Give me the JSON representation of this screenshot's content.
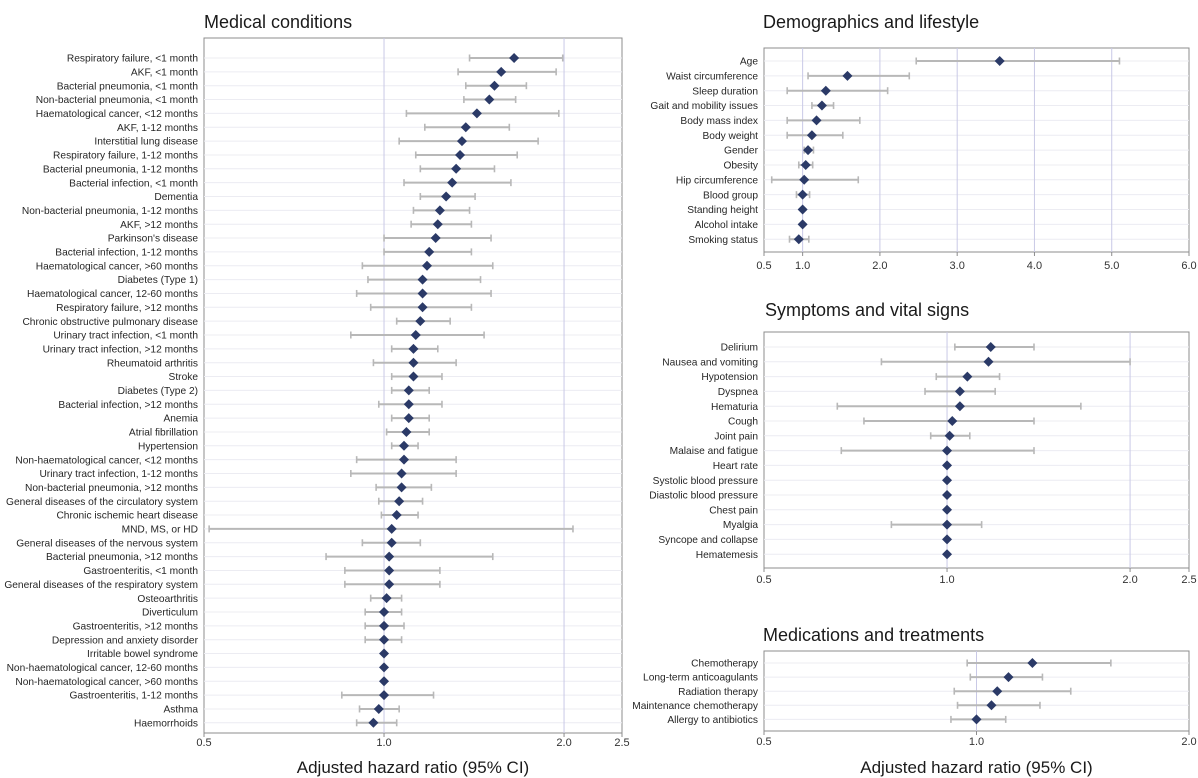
{
  "chart_data": [
    {
      "type": "forest",
      "title": "Medical conditions",
      "xlabel": "Adjusted hazard ratio (95% CI)",
      "xscale": "log",
      "xlim": [
        0.5,
        2.5
      ],
      "xticks": [
        0.5,
        1.0,
        2.0,
        2.5
      ],
      "xtick_labels": [
        "0.5",
        "1.0",
        "2.0",
        "2.5"
      ],
      "grid": true,
      "marker_color": "#2b3a67",
      "ci_color": "#b8b8b8",
      "rows": [
        {
          "label": "Respiratory failure, <1 month",
          "hr": 1.65,
          "lo": 1.39,
          "hi": 1.99
        },
        {
          "label": "AKF, <1 month",
          "hr": 1.57,
          "lo": 1.33,
          "hi": 1.94
        },
        {
          "label": "Bacterial pneumonia, <1 month",
          "hr": 1.53,
          "lo": 1.37,
          "hi": 1.73
        },
        {
          "label": "Non-bacterial pneumonia, <1 month",
          "hr": 1.5,
          "lo": 1.36,
          "hi": 1.66
        },
        {
          "label": "Haematological cancer, <12 months",
          "hr": 1.43,
          "lo": 1.09,
          "hi": 1.96
        },
        {
          "label": "AKF, 1-12 months",
          "hr": 1.37,
          "lo": 1.17,
          "hi": 1.62
        },
        {
          "label": "Interstitial lung disease",
          "hr": 1.35,
          "lo": 1.06,
          "hi": 1.81
        },
        {
          "label": "Respiratory failure, 1-12 months",
          "hr": 1.34,
          "lo": 1.13,
          "hi": 1.67
        },
        {
          "label": "Bacterial pneumonia, 1-12 months",
          "hr": 1.32,
          "lo": 1.15,
          "hi": 1.53
        },
        {
          "label": "Bacterial infection, <1 month",
          "hr": 1.3,
          "lo": 1.08,
          "hi": 1.63
        },
        {
          "label": "Dementia",
          "hr": 1.27,
          "lo": 1.15,
          "hi": 1.42
        },
        {
          "label": "Non-bacterial pneumonia, 1-12 months",
          "hr": 1.24,
          "lo": 1.12,
          "hi": 1.39
        },
        {
          "label": "AKF, >12 months",
          "hr": 1.23,
          "lo": 1.11,
          "hi": 1.4
        },
        {
          "label": "Parkinson's disease",
          "hr": 1.22,
          "lo": 1.0,
          "hi": 1.51
        },
        {
          "label": "Bacterial infection, 1-12 months",
          "hr": 1.19,
          "lo": 1.0,
          "hi": 1.4
        },
        {
          "label": "Haematological cancer, >60 months",
          "hr": 1.18,
          "lo": 0.92,
          "hi": 1.52
        },
        {
          "label": "Diabetes (Type 1)",
          "hr": 1.16,
          "lo": 0.94,
          "hi": 1.45
        },
        {
          "label": "Haematological cancer, 12-60 months",
          "hr": 1.16,
          "lo": 0.9,
          "hi": 1.51
        },
        {
          "label": "Respiratory failure, >12 months",
          "hr": 1.16,
          "lo": 0.95,
          "hi": 1.4
        },
        {
          "label": "Chronic obstructive pulmonary disease",
          "hr": 1.15,
          "lo": 1.05,
          "hi": 1.29
        },
        {
          "label": "Urinary tract infection, <1 month",
          "hr": 1.13,
          "lo": 0.88,
          "hi": 1.47
        },
        {
          "label": "Urinary tract infection, >12 months",
          "hr": 1.12,
          "lo": 1.03,
          "hi": 1.23
        },
        {
          "label": "Rheumatoid arthritis",
          "hr": 1.12,
          "lo": 0.96,
          "hi": 1.32
        },
        {
          "label": "Stroke",
          "hr": 1.12,
          "lo": 1.03,
          "hi": 1.25
        },
        {
          "label": "Diabetes (Type 2)",
          "hr": 1.1,
          "lo": 1.03,
          "hi": 1.19
        },
        {
          "label": "Bacterial infection, >12 months",
          "hr": 1.1,
          "lo": 0.98,
          "hi": 1.25
        },
        {
          "label": "Anemia",
          "hr": 1.1,
          "lo": 1.03,
          "hi": 1.19
        },
        {
          "label": "Atrial fibrillation",
          "hr": 1.09,
          "lo": 1.01,
          "hi": 1.19
        },
        {
          "label": "Hypertension",
          "hr": 1.08,
          "lo": 1.03,
          "hi": 1.14
        },
        {
          "label": "Non-haematological cancer, <12 months",
          "hr": 1.08,
          "lo": 0.9,
          "hi": 1.32
        },
        {
          "label": "Urinary tract infection, 1-12 months",
          "hr": 1.07,
          "lo": 0.88,
          "hi": 1.32
        },
        {
          "label": "Non-bacterial pneumonia, >12 months",
          "hr": 1.07,
          "lo": 0.97,
          "hi": 1.2
        },
        {
          "label": "General diseases of the circulatory system",
          "hr": 1.06,
          "lo": 0.98,
          "hi": 1.16
        },
        {
          "label": "Chronic ischemic heart disease",
          "hr": 1.05,
          "lo": 0.99,
          "hi": 1.14
        },
        {
          "label": "MND, MS, or HD",
          "hr": 1.03,
          "lo": 0.51,
          "hi": 2.07
        },
        {
          "label": "General diseases of the nervous system",
          "hr": 1.03,
          "lo": 0.92,
          "hi": 1.15
        },
        {
          "label": "Bacterial pneumonia, >12 months",
          "hr": 1.02,
          "lo": 0.8,
          "hi": 1.52
        },
        {
          "label": "Gastroenteritis, <1 month",
          "hr": 1.02,
          "lo": 0.86,
          "hi": 1.24
        },
        {
          "label": "General diseases of the respiratory system",
          "hr": 1.02,
          "lo": 0.86,
          "hi": 1.24
        },
        {
          "label": "Osteoarthritis",
          "hr": 1.01,
          "lo": 0.95,
          "hi": 1.07
        },
        {
          "label": "Diverticulum",
          "hr": 1.0,
          "lo": 0.93,
          "hi": 1.07
        },
        {
          "label": "Gastroenteritis, >12 months",
          "hr": 1.0,
          "lo": 0.93,
          "hi": 1.08
        },
        {
          "label": "Depression and anxiety disorder",
          "hr": 1.0,
          "lo": 0.93,
          "hi": 1.07
        },
        {
          "label": "Irritable bowel syndrome",
          "hr": 1.0,
          "lo": 1.0,
          "hi": 1.0
        },
        {
          "label": "Non-haematological cancer, 12-60 months",
          "hr": 1.0,
          "lo": 1.0,
          "hi": 1.0
        },
        {
          "label": "Non-haematological cancer, >60 months",
          "hr": 1.0,
          "lo": 1.0,
          "hi": 1.0
        },
        {
          "label": "Gastroenteritis, 1-12 months",
          "hr": 1.0,
          "lo": 0.85,
          "hi": 1.21
        },
        {
          "label": "Asthma",
          "hr": 0.98,
          "lo": 0.91,
          "hi": 1.06
        },
        {
          "label": "Haemorrhoids",
          "hr": 0.96,
          "lo": 0.9,
          "hi": 1.05
        }
      ]
    },
    {
      "type": "forest",
      "title": "Demographics and lifestyle",
      "xscale": "linear",
      "xlim": [
        0.5,
        6.0
      ],
      "xticks": [
        0.5,
        1.0,
        2.0,
        3.0,
        4.0,
        5.0,
        6.0
      ],
      "xtick_labels": [
        "0.5",
        "1.0",
        "2.0",
        "3.0",
        "4.0",
        "5.0",
        "6.0"
      ],
      "grid": true,
      "rows": [
        {
          "label": "Age",
          "hr": 3.55,
          "lo": 2.47,
          "hi": 5.1
        },
        {
          "label": "Waist circumference",
          "hr": 1.58,
          "lo": 1.07,
          "hi": 2.38
        },
        {
          "label": "Sleep duration",
          "hr": 1.3,
          "lo": 0.8,
          "hi": 2.1
        },
        {
          "label": "Gait and mobility issues",
          "hr": 1.25,
          "lo": 1.12,
          "hi": 1.4
        },
        {
          "label": "Body mass index",
          "hr": 1.18,
          "lo": 0.8,
          "hi": 1.74
        },
        {
          "label": "Body weight",
          "hr": 1.12,
          "lo": 0.8,
          "hi": 1.52
        },
        {
          "label": "Gender",
          "hr": 1.07,
          "lo": 1.02,
          "hi": 1.14
        },
        {
          "label": "Obesity",
          "hr": 1.04,
          "lo": 0.95,
          "hi": 1.13
        },
        {
          "label": "Hip circumference",
          "hr": 1.02,
          "lo": 0.6,
          "hi": 1.72
        },
        {
          "label": "Blood group",
          "hr": 1.0,
          "lo": 0.92,
          "hi": 1.09
        },
        {
          "label": "Standing height",
          "hr": 1.0,
          "lo": 1.0,
          "hi": 1.0
        },
        {
          "label": "Alcohol intake",
          "hr": 1.0,
          "lo": 1.0,
          "hi": 1.0
        },
        {
          "label": "Smoking status",
          "hr": 0.95,
          "lo": 0.83,
          "hi": 1.08
        }
      ]
    },
    {
      "type": "forest",
      "title": "Symptoms and vital signs",
      "xlabel": "Adjusted hazard ratio (95% CI)",
      "xscale": "log",
      "xlim": [
        0.5,
        2.5
      ],
      "xticks": [
        0.5,
        1.0,
        2.0,
        2.5
      ],
      "xtick_labels": [
        "0.5",
        "1.0",
        "2.0",
        "2.5"
      ],
      "grid": true,
      "rows": [
        {
          "label": "Delirium",
          "hr": 1.18,
          "lo": 1.03,
          "hi": 1.39
        },
        {
          "label": "Nausea and vomiting",
          "hr": 1.17,
          "lo": 0.78,
          "hi": 2.0
        },
        {
          "label": "Hypotension",
          "hr": 1.08,
          "lo": 0.96,
          "hi": 1.22
        },
        {
          "label": "Dyspnea",
          "hr": 1.05,
          "lo": 0.92,
          "hi": 1.2
        },
        {
          "label": "Hematuria",
          "hr": 1.05,
          "lo": 0.66,
          "hi": 1.66
        },
        {
          "label": "Cough",
          "hr": 1.02,
          "lo": 0.73,
          "hi": 1.39
        },
        {
          "label": "Joint pain",
          "hr": 1.01,
          "lo": 0.94,
          "hi": 1.09
        },
        {
          "label": "Malaise and fatigue",
          "hr": 1.0,
          "lo": 0.67,
          "hi": 1.39
        },
        {
          "label": "Heart rate",
          "hr": 1.0,
          "lo": 1.0,
          "hi": 1.0
        },
        {
          "label": "Systolic blood pressure",
          "hr": 1.0,
          "lo": 1.0,
          "hi": 1.0
        },
        {
          "label": "Diastolic blood pressure",
          "hr": 1.0,
          "lo": 1.0,
          "hi": 1.0
        },
        {
          "label": "Chest pain",
          "hr": 1.0,
          "lo": 1.0,
          "hi": 1.0
        },
        {
          "label": "Myalgia",
          "hr": 1.0,
          "lo": 0.81,
          "hi": 1.14
        },
        {
          "label": "Syncope and collapse",
          "hr": 1.0,
          "lo": 1.0,
          "hi": 1.0
        },
        {
          "label": "Hematemesis",
          "hr": 1.0,
          "lo": 1.0,
          "hi": 1.0
        }
      ]
    },
    {
      "type": "forest",
      "title": "Medications and treatments",
      "xlabel": "Adjusted hazard ratio (95% CI)",
      "xscale": "log",
      "xlim": [
        0.5,
        2.0
      ],
      "xticks": [
        0.5,
        1.0,
        2.0
      ],
      "xtick_labels": [
        "0.5",
        "1.0",
        "2.0"
      ],
      "grid": true,
      "rows": [
        {
          "label": "Chemotherapy",
          "hr": 1.2,
          "lo": 0.97,
          "hi": 1.55
        },
        {
          "label": "Long-term anticoagulants",
          "hr": 1.11,
          "lo": 0.98,
          "hi": 1.24
        },
        {
          "label": "Radiation therapy",
          "hr": 1.07,
          "lo": 0.93,
          "hi": 1.36
        },
        {
          "label": "Maintenance chemotherapy",
          "hr": 1.05,
          "lo": 0.94,
          "hi": 1.23
        },
        {
          "label": "Allergy to antibiotics",
          "hr": 1.0,
          "lo": 0.92,
          "hi": 1.1
        }
      ]
    }
  ]
}
